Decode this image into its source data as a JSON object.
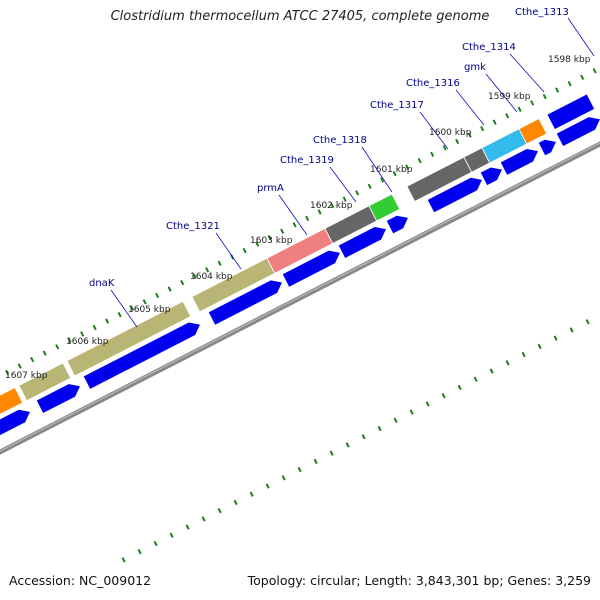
{
  "title": "Clostridium thermocellum ATCC 27405, complete genome",
  "footer": {
    "accession": "Accession: NC_009012",
    "summary": "Topology: circular; Length: 3,843,301 bp; Genes: 3,259"
  },
  "colors": {
    "cds_arrow": "#0000ee",
    "backbone": "#888888",
    "tick": "#1e7d1e",
    "gene_label": "#00008b",
    "leader_line": "#1010c0",
    "olive_gene": "#b9b574",
    "orange_gene": "#ff8800",
    "gray_gene": "#666666",
    "pink_gene": "#f08080",
    "green_gene": "#33cc33",
    "cyan_gene": "#33bbee"
  },
  "scale_labels": [
    "1598 kbp",
    "1599 kbp",
    "1600 kbp",
    "1601 kbp",
    "1602 kbp",
    "1603 kbp",
    "1604 kbp",
    "1605 kbp",
    "1606 kbp",
    "1607 kbp"
  ],
  "genes": [
    {
      "label": "Cthe_1313",
      "color": "blue"
    },
    {
      "label": "Cthe_1314",
      "color": "orange"
    },
    {
      "label": "gmk",
      "color": "cyan"
    },
    {
      "label": "Cthe_1316",
      "color": "gray"
    },
    {
      "label": "Cthe_1317",
      "color": "gray"
    },
    {
      "label": "Cthe_1318",
      "color": "green"
    },
    {
      "label": "Cthe_1319",
      "color": "gray"
    },
    {
      "label": "prmA",
      "color": "pink"
    },
    {
      "label": "Cthe_1321",
      "color": "olive"
    },
    {
      "label": "dnaK",
      "color": "olive"
    }
  ]
}
